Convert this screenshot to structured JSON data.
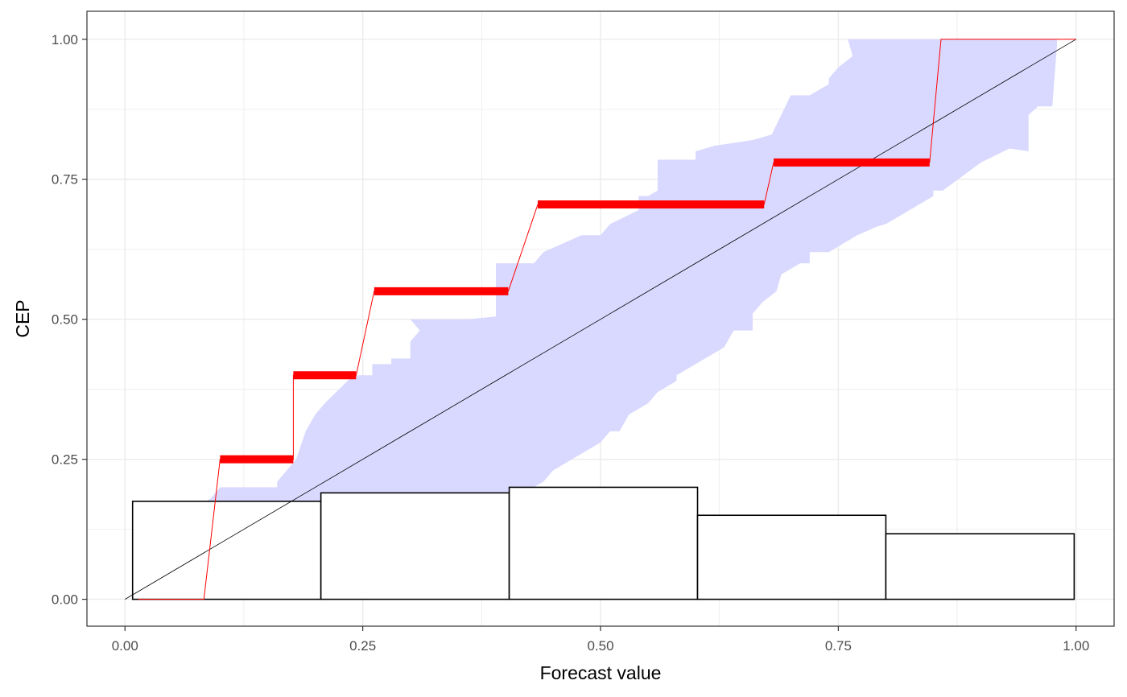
{
  "chart_data": {
    "type": "line",
    "xlabel": "Forecast value",
    "ylabel": "CEP",
    "xlim": [
      -0.04,
      1.04
    ],
    "ylim": [
      -0.048,
      1.05
    ],
    "x_ticks": [
      0.0,
      0.25,
      0.5,
      0.75,
      1.0
    ],
    "x_tick_labels": [
      "0.00",
      "0.25",
      "0.50",
      "0.75",
      "1.00"
    ],
    "y_ticks": [
      0.0,
      0.25,
      0.5,
      0.75,
      1.0
    ],
    "y_tick_labels": [
      "0.00",
      "0.25",
      "0.50",
      "0.75",
      "1.00"
    ],
    "grid": true,
    "legend": "none",
    "colors": {
      "band": "#d9d9ff",
      "cep": "#ff0000",
      "diagonal": "#000000",
      "histogram": "#000000",
      "grid": "#ebebeb",
      "panel_border": "#333333"
    },
    "consistency_band": {
      "upper": [
        [
          0.014,
          0.0
        ],
        [
          0.03,
          0.0
        ],
        [
          0.03,
          0.125
        ],
        [
          0.055,
          0.125
        ],
        [
          0.055,
          0.13
        ],
        [
          0.07,
          0.16
        ],
        [
          0.09,
          0.18
        ],
        [
          0.1,
          0.2
        ],
        [
          0.15,
          0.2
        ],
        [
          0.16,
          0.2
        ],
        [
          0.16,
          0.21
        ],
        [
          0.18,
          0.25
        ],
        [
          0.19,
          0.3
        ],
        [
          0.2,
          0.33
        ],
        [
          0.21,
          0.35
        ],
        [
          0.24,
          0.4
        ],
        [
          0.26,
          0.4
        ],
        [
          0.26,
          0.42
        ],
        [
          0.28,
          0.42
        ],
        [
          0.28,
          0.43
        ],
        [
          0.3,
          0.43
        ],
        [
          0.3,
          0.44
        ],
        [
          0.3,
          0.46
        ],
        [
          0.31,
          0.48
        ],
        [
          0.3,
          0.5
        ],
        [
          0.34,
          0.5
        ],
        [
          0.36,
          0.5
        ],
        [
          0.39,
          0.505
        ],
        [
          0.39,
          0.53
        ],
        [
          0.39,
          0.6
        ],
        [
          0.43,
          0.6
        ],
        [
          0.44,
          0.62
        ],
        [
          0.48,
          0.65
        ],
        [
          0.5,
          0.65
        ],
        [
          0.51,
          0.67
        ],
        [
          0.54,
          0.695
        ],
        [
          0.54,
          0.72
        ],
        [
          0.55,
          0.72
        ],
        [
          0.56,
          0.73
        ],
        [
          0.56,
          0.785
        ],
        [
          0.6,
          0.785
        ],
        [
          0.6,
          0.8
        ],
        [
          0.62,
          0.81
        ],
        [
          0.66,
          0.82
        ],
        [
          0.68,
          0.83
        ],
        [
          0.69,
          0.865
        ],
        [
          0.7,
          0.9
        ],
        [
          0.72,
          0.9
        ],
        [
          0.74,
          0.92
        ],
        [
          0.74,
          0.93
        ],
        [
          0.75,
          0.95
        ],
        [
          0.765,
          0.97
        ],
        [
          0.76,
          1.0
        ],
        [
          0.97,
          1.0
        ],
        [
          0.98,
          1.0
        ],
        [
          0.98,
          0.99
        ],
        [
          1.0,
          1.0
        ],
        [
          0.98,
          0.99
        ],
        [
          0.975,
          0.88
        ],
        [
          0.96,
          0.88
        ],
        [
          0.95,
          0.865
        ],
        [
          0.95,
          0.8
        ],
        [
          0.93,
          0.805
        ]
      ],
      "lower": [
        [
          0.93,
          0.805
        ],
        [
          0.9,
          0.78
        ],
        [
          0.86,
          0.73
        ],
        [
          0.85,
          0.73
        ],
        [
          0.85,
          0.72
        ],
        [
          0.83,
          0.7
        ],
        [
          0.82,
          0.69
        ],
        [
          0.81,
          0.68
        ],
        [
          0.8,
          0.67
        ],
        [
          0.79,
          0.665
        ],
        [
          0.77,
          0.65
        ],
        [
          0.76,
          0.64
        ],
        [
          0.74,
          0.62
        ],
        [
          0.72,
          0.62
        ],
        [
          0.72,
          0.6
        ],
        [
          0.71,
          0.6
        ],
        [
          0.7,
          0.59
        ],
        [
          0.69,
          0.58
        ],
        [
          0.685,
          0.55
        ],
        [
          0.67,
          0.53
        ],
        [
          0.66,
          0.51
        ],
        [
          0.66,
          0.48
        ],
        [
          0.64,
          0.48
        ],
        [
          0.63,
          0.45
        ],
        [
          0.6,
          0.42
        ],
        [
          0.58,
          0.4
        ],
        [
          0.58,
          0.39
        ],
        [
          0.56,
          0.37
        ],
        [
          0.55,
          0.35
        ],
        [
          0.53,
          0.33
        ],
        [
          0.52,
          0.3
        ],
        [
          0.51,
          0.3
        ],
        [
          0.5,
          0.28
        ],
        [
          0.49,
          0.27
        ],
        [
          0.47,
          0.25
        ],
        [
          0.45,
          0.23
        ],
        [
          0.44,
          0.21
        ],
        [
          0.43,
          0.2
        ],
        [
          0.43,
          0.18
        ],
        [
          0.42,
          0.18
        ],
        [
          0.41,
          0.16
        ],
        [
          0.4,
          0.15
        ],
        [
          0.39,
          0.14
        ],
        [
          0.38,
          0.14
        ],
        [
          0.37,
          0.14
        ],
        [
          0.35,
          0.13
        ],
        [
          0.33,
          0.12
        ],
        [
          0.31,
          0.1
        ],
        [
          0.29,
          0.08
        ],
        [
          0.27,
          0.06
        ],
        [
          0.26,
          0.05
        ],
        [
          0.25,
          0.03
        ],
        [
          0.24,
          0.02
        ],
        [
          0.23,
          0.0
        ]
      ]
    },
    "cep": [
      [
        0.014,
        0.0
      ],
      [
        0.083,
        0.0
      ],
      [
        0.1,
        0.25
      ],
      [
        0.177,
        0.25
      ],
      [
        0.177,
        0.4
      ],
      [
        0.243,
        0.4
      ],
      [
        0.262,
        0.55
      ],
      [
        0.403,
        0.55
      ],
      [
        0.434,
        0.705
      ],
      [
        0.672,
        0.705
      ],
      [
        0.682,
        0.78
      ],
      [
        0.846,
        0.78
      ],
      [
        0.858,
        1.0
      ],
      [
        1.0,
        1.0
      ]
    ],
    "cep_plateaus": [
      [
        0.1,
        0.177,
        0.25
      ],
      [
        0.177,
        0.243,
        0.4
      ],
      [
        0.262,
        0.403,
        0.55
      ],
      [
        0.434,
        0.672,
        0.705
      ],
      [
        0.682,
        0.846,
        0.78
      ]
    ],
    "diagonal": [
      [
        0.0,
        0.0
      ],
      [
        1.0,
        1.0
      ]
    ],
    "histogram": {
      "bins": [
        [
          0.008,
          0.206
        ],
        [
          0.206,
          0.404
        ],
        [
          0.404,
          0.602
        ],
        [
          0.602,
          0.8
        ],
        [
          0.8,
          0.998
        ]
      ],
      "heights": [
        0.175,
        0.19,
        0.2,
        0.15,
        0.117
      ]
    }
  }
}
